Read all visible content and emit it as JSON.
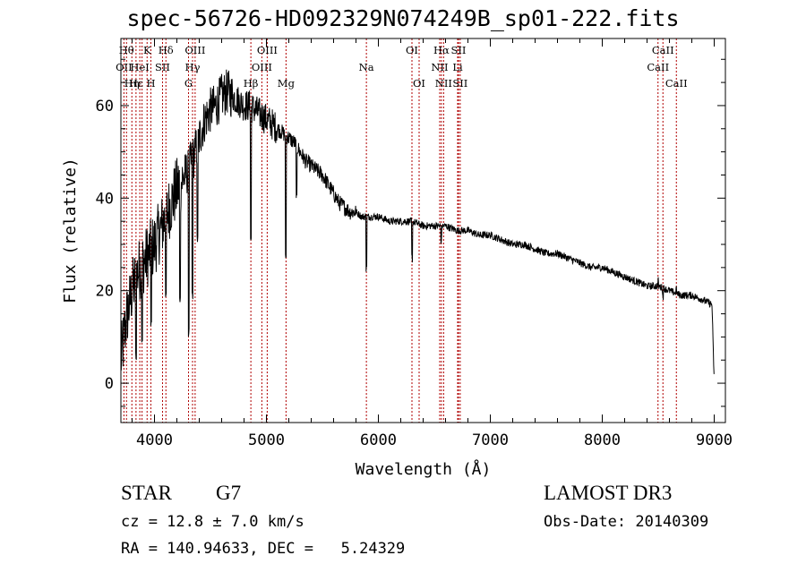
{
  "chart_data": {
    "type": "line",
    "title": "spec-56726-HD092329N074249B_sp01-222.fits",
    "xlabel": "Wavelength (Å)",
    "ylabel": "Flux (relative)",
    "xlim": [
      3700,
      9100
    ],
    "ylim": [
      -8.5,
      74.5
    ],
    "x_ticks": [
      4000,
      5000,
      6000,
      7000,
      8000,
      9000
    ],
    "x_tick_labels": [
      "4000",
      "5000",
      "6000",
      "7000",
      "8000",
      "9000"
    ],
    "y_ticks": [
      0,
      20,
      40,
      60
    ],
    "y_tick_labels": [
      "0",
      "20",
      "40",
      "60"
    ],
    "grid": false,
    "series": [
      {
        "name": "spectrum",
        "color": "#000000",
        "noisy": true,
        "x": [
          3700,
          3750,
          3800,
          3850,
          3900,
          3950,
          4000,
          4050,
          4100,
          4150,
          4200,
          4250,
          4300,
          4350,
          4400,
          4450,
          4500,
          4550,
          4600,
          4650,
          4700,
          4750,
          4800,
          4850,
          4900,
          4950,
          5000,
          5050,
          5100,
          5150,
          5200,
          5250,
          5300,
          5350,
          5400,
          5450,
          5500,
          5550,
          5600,
          5650,
          5700,
          5750,
          5800,
          5850,
          5900,
          5950,
          6000,
          6100,
          6200,
          6300,
          6400,
          6500,
          6600,
          6700,
          6800,
          6900,
          7000,
          7100,
          7200,
          7300,
          7400,
          7500,
          7600,
          7700,
          7800,
          7900,
          8000,
          8100,
          8200,
          8300,
          8400,
          8500,
          8600,
          8700,
          8800,
          8900,
          8980,
          9000
        ],
        "y": [
          5,
          14,
          20,
          24,
          26,
          28,
          30,
          33,
          36,
          39,
          42,
          44,
          46,
          49,
          53,
          57,
          59,
          60,
          62,
          63,
          62,
          61,
          60,
          60,
          59,
          58,
          57,
          56,
          55,
          54,
          53,
          52,
          50,
          48,
          47,
          46,
          45,
          43,
          41,
          39,
          38,
          37,
          37,
          36,
          36,
          36,
          36,
          35,
          35,
          35,
          34,
          34,
          34,
          33,
          33,
          32,
          32,
          31,
          30,
          30,
          29,
          28,
          28,
          27,
          26,
          25,
          25,
          24,
          23,
          22,
          21,
          21,
          20,
          19,
          19,
          18,
          17,
          0
        ],
        "dips": [
          [
            3835,
            5
          ],
          [
            3890,
            8
          ],
          [
            3970,
            12
          ],
          [
            4102,
            18
          ],
          [
            4227,
            17
          ],
          [
            4305,
            10
          ],
          [
            4340,
            18
          ],
          [
            4383,
            30
          ],
          [
            4861,
            30
          ],
          [
            5172,
            26
          ],
          [
            5270,
            40
          ],
          [
            5893,
            24
          ],
          [
            6300,
            26
          ],
          [
            6563,
            30
          ],
          [
            8498,
            21
          ],
          [
            8542,
            18
          ],
          [
            8662,
            19
          ]
        ]
      }
    ],
    "lines": [
      {
        "x": 3727,
        "label": "OII",
        "row": 2
      },
      {
        "x": 3750,
        "label": "Hθ",
        "row": 1
      },
      {
        "x": 3798,
        "label": "Hη",
        "row": 3
      },
      {
        "x": 3835,
        "label": "Hε",
        "row": 3
      },
      {
        "x": 3869,
        "label": "HeI",
        "row": 2
      },
      {
        "x": 3889,
        "label": "",
        "row": 0
      },
      {
        "x": 3934,
        "label": "K",
        "row": 1
      },
      {
        "x": 3968,
        "label": "H",
        "row": 3
      },
      {
        "x": 4072,
        "label": "SII",
        "row": 2
      },
      {
        "x": 4102,
        "label": "Hδ",
        "row": 1
      },
      {
        "x": 4304,
        "label": "G",
        "row": 3
      },
      {
        "x": 4340,
        "label": "Hγ",
        "row": 2
      },
      {
        "x": 4363,
        "label": "OIII",
        "row": 1
      },
      {
        "x": 4861,
        "label": "Hβ",
        "row": 3
      },
      {
        "x": 4959,
        "label": "OIII",
        "row": 2
      },
      {
        "x": 5007,
        "label": "OIII",
        "row": 1
      },
      {
        "x": 5175,
        "label": "Mg",
        "row": 3
      },
      {
        "x": 5893,
        "label": "Na",
        "row": 2
      },
      {
        "x": 6300,
        "label": "OI",
        "row": 1
      },
      {
        "x": 6364,
        "label": "OI",
        "row": 3
      },
      {
        "x": 6548,
        "label": "NII",
        "row": 2
      },
      {
        "x": 6563,
        "label": "Hα",
        "row": 1
      },
      {
        "x": 6583,
        "label": "NII",
        "row": 3
      },
      {
        "x": 6708,
        "label": "Li",
        "row": 2
      },
      {
        "x": 6716,
        "label": "SII",
        "row": 1
      },
      {
        "x": 6731,
        "label": "SII",
        "row": 3
      },
      {
        "x": 8498,
        "label": "CaII",
        "row": 2
      },
      {
        "x": 8542,
        "label": "CaII",
        "row": 1
      },
      {
        "x": 8662,
        "label": "CaII",
        "row": 3
      }
    ],
    "line_color": "#b00000"
  },
  "info": {
    "class_label": "STAR",
    "subclass": "G7",
    "cz": "cz = 12.8 ± 7.0 km/s",
    "coords": "RA = 140.94633, DEC =   5.24329",
    "survey": "LAMOST DR3",
    "obs_date": "Obs-Date: 20140309"
  }
}
